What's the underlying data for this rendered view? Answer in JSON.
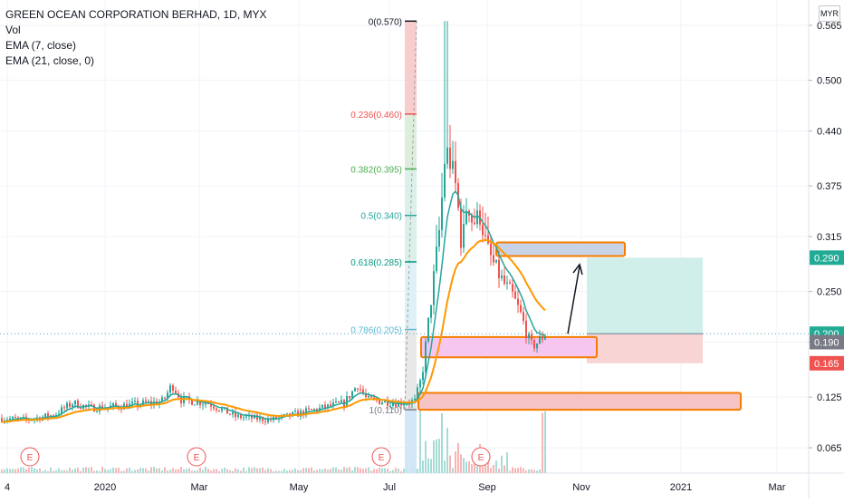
{
  "header": {
    "symbol": "GREEN OCEAN CORPORATION BERHAD, 1D, MYX",
    "indicators": [
      "Vol",
      "EMA (7, close)",
      "EMA (21, close, 0)"
    ],
    "currency": "MYR"
  },
  "colors": {
    "up": "#26a69a",
    "down": "#ef5350",
    "ema7": "#26a69a",
    "ema21": "#ff9800",
    "box_orange": "#f57c00",
    "target_zone": "#cfeee9",
    "stop_zone": "#f8d2d2"
  },
  "chart_data": {
    "type": "candlestick",
    "ylim": [
      0.035,
      0.595
    ],
    "y_ticks": [
      "0.565",
      "0.500",
      "0.440",
      "0.375",
      "0.315",
      "0.250",
      "0.190",
      "0.125",
      "0.065"
    ],
    "x_ticks": [
      "4",
      "2020",
      "Mar",
      "May",
      "Jul",
      "Sep",
      "Nov",
      "2021",
      "Mar"
    ],
    "price_tags": [
      {
        "value": 0.29,
        "label": "0.290",
        "color": "#22ab94"
      },
      {
        "value": 0.2,
        "label": "0.200",
        "color": "#22ab94"
      },
      {
        "value": 0.19,
        "label": "0.190",
        "color": "#787b86"
      },
      {
        "value": 0.165,
        "label": "0.165",
        "color": "#ef5350"
      }
    ],
    "fib_levels": [
      {
        "ratio": "0",
        "price": 0.57,
        "label": "0(0.570)",
        "color": "#131722"
      },
      {
        "ratio": "0.236",
        "price": 0.46,
        "label": "0.236(0.460)",
        "color": "#ef5350"
      },
      {
        "ratio": "0.382",
        "price": 0.395,
        "label": "0.382(0.395)",
        "color": "#4caf50"
      },
      {
        "ratio": "0.5",
        "price": 0.34,
        "label": "0.5(0.340)",
        "color": "#26a69a"
      },
      {
        "ratio": "0.618",
        "price": 0.285,
        "label": "0.618(0.285)",
        "color": "#089981"
      },
      {
        "ratio": "0.786",
        "price": 0.205,
        "label": "0.786(0.205)",
        "color": "#5fb8d6"
      },
      {
        "ratio": "1",
        "price": 0.11,
        "label": "1(0.110)",
        "color": "#787b86"
      }
    ],
    "earnings_markers": [
      "E",
      "E",
      "E",
      "E"
    ],
    "zones": [
      {
        "name": "resistance",
        "top": 0.308,
        "bottom": 0.292
      },
      {
        "name": "support",
        "top": 0.196,
        "bottom": 0.172
      },
      {
        "name": "base",
        "top": 0.13,
        "bottom": 0.11
      }
    ],
    "position": {
      "entry": 0.2,
      "target": 0.29,
      "stop": 0.165
    },
    "last_price": 0.2
  }
}
